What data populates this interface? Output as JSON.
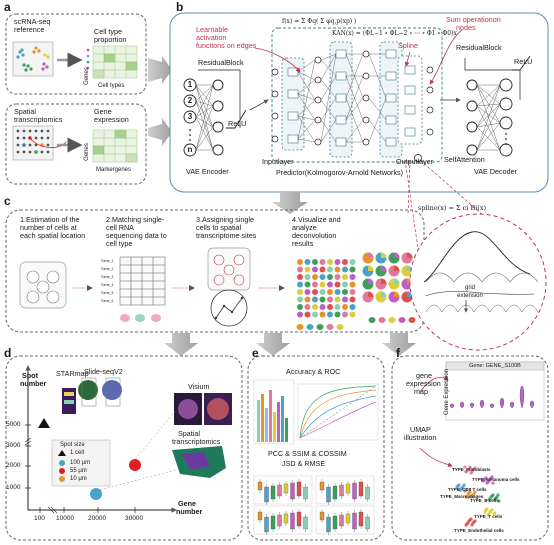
{
  "panels": {
    "a": "a",
    "b": "b",
    "c": "c",
    "d": "d",
    "e": "e",
    "f": "f"
  },
  "panel_a": {
    "scrna_title_1": "scRNA-seq",
    "scrna_title_2": "reference",
    "celltype_prop_1": "Cell type",
    "celltype_prop_2": "proportion",
    "genes": "Genes",
    "celltypes": "Cell types",
    "spatial_1": "Spatial",
    "spatial_2": "transcriptomics",
    "gene_expr_1": "Gene",
    "gene_expr_2": "expression",
    "genes2": "Genes",
    "markergenes": "Markergenes"
  },
  "panel_b": {
    "learnable_1": "Learnable",
    "learnable_2": "activation",
    "learnable_3": "functions on edges",
    "residual_left": "ResidualBlock",
    "relu_left": "ReLU",
    "vae_encoder": "VAE Encoder",
    "input_layer": "Inputlayer",
    "predictor": "Predictor(Kolmogorov-Arnold Networks)",
    "output_layer": "Outputlayer",
    "spline": "Spline",
    "sum_1": "Sum operationon",
    "sum_2": "nodes",
    "residual_right": "ResidualBlock",
    "relu_right": "ReLU",
    "self_attention": "SelfAttention",
    "vae_decoder": "VAE Decoder",
    "nodes_left": [
      "1",
      "2",
      "3",
      "n"
    ],
    "formula_top": "f(x) = Σ Φq( Σ φq,p(xp) )",
    "formula_kan": "KAN(x) = (ΦL−1 ∘ ΦL−2 ∘ ⋯ ∘ Φ1 ∘ Φ0)x",
    "formula_spline": "spline(x) = Σ ci Bi(x)",
    "grid_label_1": "grid",
    "grid_label_2": "extension"
  },
  "panel_c": {
    "step1": [
      "1.Estimation of the",
      "number of cells at",
      "each spatial location"
    ],
    "step2": [
      "2.Matching single-",
      "cell RNA",
      "sequencing data to",
      "cell type"
    ],
    "step3": [
      "3.Assigning single",
      "cells to spatial",
      "transcriptome sites"
    ],
    "step4": [
      "4.Visualize and",
      "analyze",
      "deconvolution",
      "results"
    ],
    "gene_rows": [
      "Gene_1",
      "Gene_2",
      "Gene_3",
      "Gene_4",
      "Gene_5",
      "Gene_6"
    ]
  },
  "panel_d": {
    "ylabel_1": "Spot",
    "ylabel_2": "number",
    "xlabel_1": "Gene",
    "xlabel_2": "number",
    "starmap": "STARmap",
    "slideseq": "Slide-seqV2",
    "visium": "Visium",
    "spatial_t_1": "Spatial",
    "spatial_t_2": "transcriptomics",
    "legend_title": "Spot size",
    "legend_items": [
      "1 cell",
      "100 μm",
      "55 μm",
      "10 μm"
    ],
    "legend_colors": [
      "#111111",
      "#4aa3c7",
      "#e02020",
      "#e8922e"
    ],
    "yticks": [
      "5000",
      "3000",
      "2000",
      "1000"
    ],
    "xticks": [
      "100",
      "10000",
      "20000",
      "30000"
    ]
  },
  "panel_e": {
    "accuracy": "Accuracy & ROC",
    "metrics_1": "PCC & SSIM & COSSIM",
    "metrics_2": "JSD & RMSE"
  },
  "panel_f": {
    "gene_map_1": "gene",
    "gene_map_2": "expression",
    "gene_map_3": "map",
    "umap_1": "UMAP",
    "umap_2": "illustration",
    "gene_title": "Gene: GENE_S100B",
    "gene_expr_axis": "Gene Expression",
    "umap_labels": [
      "TYPE_Fibroblasts",
      "TYPE_Melanoma cells",
      "TYPE_CD8 T cells",
      "TYPE_Macrophages",
      "TYPE_B cells",
      "TYPE_T cells",
      "TYPE_Endothelial cells"
    ]
  },
  "colors": {
    "panel_b_border": "#5a8fb0",
    "red_accent": "#c0344a",
    "teal_box": "#3d7d8a"
  }
}
